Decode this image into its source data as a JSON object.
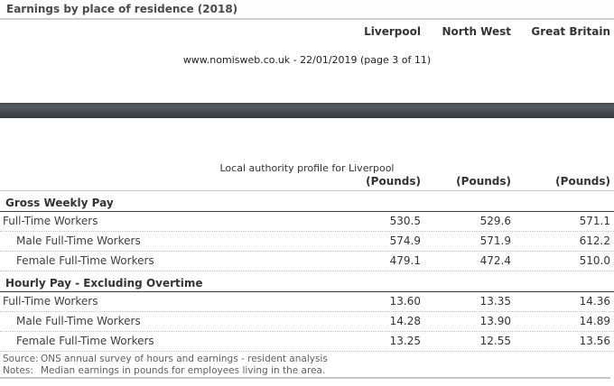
{
  "page": {
    "title": "Earnings by place of residence (2018)",
    "print_info": "www.nomisweb.co.uk - 22/01/2019 (page 3 of 11)",
    "profile_caption": "Local authority profile for Liverpool"
  },
  "columns": {
    "geographies": [
      "Liverpool",
      "North West",
      "Great Britain"
    ],
    "unit_label": "(Pounds)"
  },
  "sections": [
    {
      "heading": "Gross Weekly Pay",
      "rows": [
        {
          "label": "Full-Time Workers",
          "values": [
            "530.5",
            "529.6",
            "571.1"
          ]
        },
        {
          "label": "Male Full-Time Workers",
          "values": [
            "574.9",
            "571.9",
            "612.2"
          ]
        },
        {
          "label": "Female Full-Time Workers",
          "values": [
            "479.1",
            "472.4",
            "510.0"
          ]
        }
      ]
    },
    {
      "heading": "Hourly Pay - Excluding Overtime",
      "rows": [
        {
          "label": "Full-Time Workers",
          "values": [
            "13.60",
            "13.35",
            "14.36"
          ]
        },
        {
          "label": "Male Full-Time Workers",
          "values": [
            "14.28",
            "13.90",
            "14.89"
          ]
        },
        {
          "label": "Female Full-Time Workers",
          "values": [
            "13.25",
            "12.55",
            "13.56"
          ]
        }
      ]
    }
  ],
  "footer": {
    "source_label": "Source:",
    "source_text": "ONS annual survey of hours and earnings - resident analysis",
    "notes_label": "Notes:",
    "notes_text": "Median earnings in pounds for employees living in the area."
  },
  "colors": {
    "title_text": "#4a4a4a",
    "body_text": "#3c3c3c",
    "footer_text": "#5f5f5f",
    "light_border": "#c8c8c8",
    "dotted_row_border": "#bfc3c8",
    "section_rule": "#3a3a3a",
    "band_highlight": "#565a5e",
    "band_shadow": "#34383b"
  }
}
